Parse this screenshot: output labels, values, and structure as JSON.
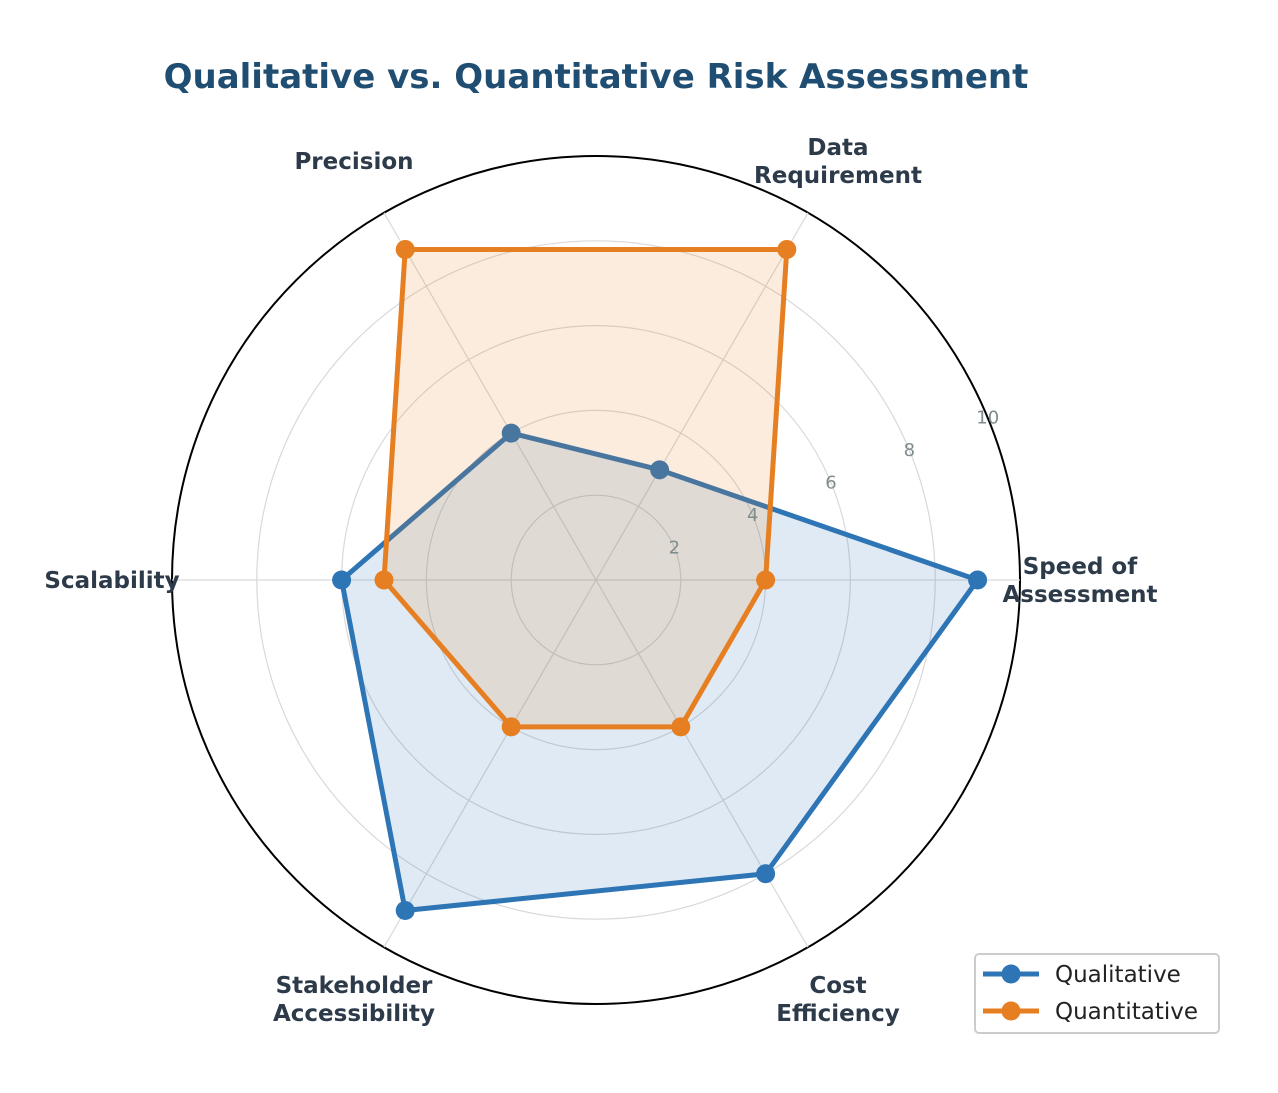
{
  "chart_data": {
    "type": "radar",
    "title": "Qualitative vs. Quantitative Risk Assessment",
    "categories": [
      [
        "Speed of",
        "Assessment"
      ],
      [
        "Data",
        "Requirement"
      ],
      [
        "Precision"
      ],
      [
        "Scalability"
      ],
      [
        "Stakeholder",
        "Accessibility"
      ],
      [
        "Cost",
        "Efficiency"
      ]
    ],
    "rlim": [
      0,
      10
    ],
    "rticks": [
      "2",
      "4",
      "6",
      "8",
      "10"
    ],
    "grid": true,
    "legend_position": "lower-right",
    "series": [
      {
        "name": "Qualitative",
        "color": "#2e75b6",
        "values": [
          9,
          3,
          4,
          6,
          9,
          8
        ]
      },
      {
        "name": "Quantitative",
        "color": "#e67e22",
        "values": [
          4,
          9,
          9,
          5,
          4,
          4
        ]
      }
    ]
  }
}
